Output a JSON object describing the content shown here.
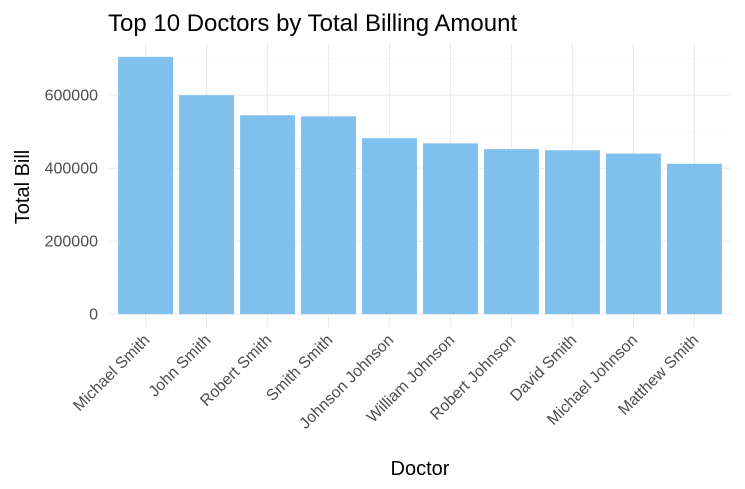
{
  "chart_data": {
    "type": "bar",
    "title": "Top 10 Doctors by Total Billing Amount",
    "xlabel": "Doctor",
    "ylabel": "Total Bill",
    "categories": [
      "Michael Smith",
      "John Smith",
      "Robert Smith",
      "Smith Smith",
      "Johnson Johnson",
      "William Johnson",
      "Robert Johnson",
      "David Smith",
      "Michael Johnson",
      "Matthew Smith"
    ],
    "values": [
      705000,
      600000,
      545000,
      542000,
      482000,
      468000,
      452000,
      449000,
      440000,
      412000
    ],
    "y_ticks": [
      0,
      200000,
      400000,
      600000
    ],
    "y_tick_labels": [
      "0",
      "200000",
      "400000",
      "600000"
    ],
    "ylim": [
      -35250,
      740250
    ],
    "grid": true,
    "bar_color": "#7fc0ed",
    "legend": "none"
  }
}
